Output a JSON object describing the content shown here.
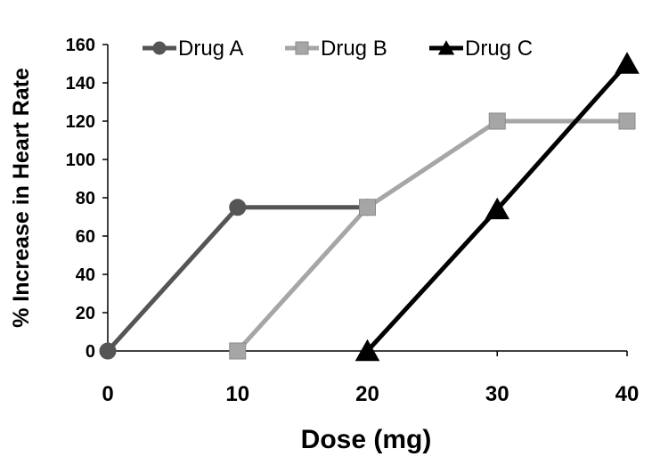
{
  "chart_data": {
    "type": "line",
    "title": "",
    "xlabel": "Dose (mg)",
    "ylabel": "% Increase in Heart Rate",
    "xlim": [
      0,
      40
    ],
    "ylim": [
      0,
      160
    ],
    "xticks": [
      0,
      10,
      20,
      30,
      40
    ],
    "yticks": [
      0,
      20,
      40,
      60,
      80,
      100,
      120,
      140,
      160
    ],
    "grid": false,
    "legend": "top",
    "series": [
      {
        "name": "Drug A",
        "color": "#555555",
        "marker": "circle",
        "points": [
          [
            0,
            0
          ],
          [
            10,
            75
          ],
          [
            20,
            75
          ]
        ]
      },
      {
        "name": "Drug B",
        "color": "#a6a6a6",
        "marker": "square",
        "points": [
          [
            10,
            0
          ],
          [
            20,
            75
          ],
          [
            30,
            120
          ],
          [
            40,
            120
          ]
        ]
      },
      {
        "name": "Drug C",
        "color": "#000000",
        "marker": "triangle",
        "points": [
          [
            20,
            0
          ],
          [
            30,
            74
          ],
          [
            40,
            150
          ]
        ]
      }
    ]
  }
}
